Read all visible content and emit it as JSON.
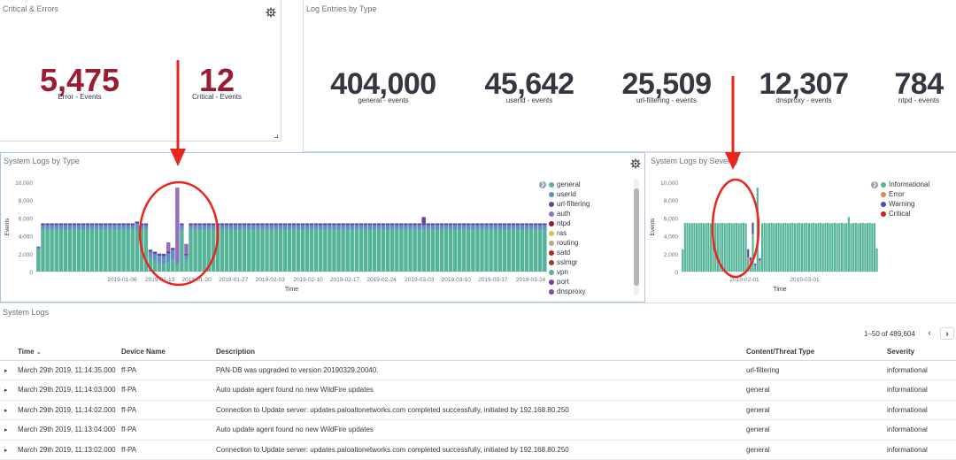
{
  "critical_errors": {
    "title": "Critical & Errors",
    "metrics": [
      {
        "value": "5,475",
        "label": "Error - Events"
      },
      {
        "value": "12",
        "label": "Critical - Events"
      }
    ]
  },
  "log_entries": {
    "title": "Log Entries by Type",
    "metrics": [
      {
        "value": "404,000",
        "label": "general - events"
      },
      {
        "value": "45,642",
        "label": "userid - events"
      },
      {
        "value": "25,509",
        "label": "url-filtering - events"
      },
      {
        "value": "12,307",
        "label": "dnsproxy - events"
      },
      {
        "value": "784",
        "label": "ntpd - events"
      }
    ]
  },
  "system_logs_by_type": {
    "title": "System Logs by Type",
    "legend": [
      {
        "name": "general",
        "color": "#54b399"
      },
      {
        "name": "userid",
        "color": "#6092c0"
      },
      {
        "name": "url-filtering",
        "color": "#6b3fa0"
      },
      {
        "name": "auth",
        "color": "#9170b8"
      },
      {
        "name": "ntpd",
        "color": "#8b1e3f"
      },
      {
        "name": "ras",
        "color": "#d6bf57"
      },
      {
        "name": "routing",
        "color": "#b9a888"
      },
      {
        "name": "satd",
        "color": "#bd271e"
      },
      {
        "name": "sslmgr",
        "color": "#a03c2c"
      },
      {
        "name": "vpn",
        "color": "#54b399"
      },
      {
        "name": "port",
        "color": "#7b3fa0"
      },
      {
        "name": "dnsproxy",
        "color": "#8e44ad"
      }
    ]
  },
  "system_logs_by_severity": {
    "title": "System Logs by Severity",
    "legend": [
      {
        "name": "Informational",
        "color": "#54b399"
      },
      {
        "name": "Error",
        "color": "#da8b45"
      },
      {
        "name": "Warning",
        "color": "#3f51b5"
      },
      {
        "name": "Critical",
        "color": "#bd271e"
      }
    ]
  },
  "chart_data": [
    {
      "type": "bar",
      "stacked": true,
      "xlabel": "Time",
      "ylabel": "Events",
      "ylim": [
        0,
        10000
      ],
      "yticks": [
        "10,000",
        "8,000",
        "6,000",
        "4,000",
        "2,000",
        "0"
      ],
      "xticks": [
        "2019-01-06",
        "2019-01-13",
        "2019-01-20",
        "2019-01-27",
        "2019-02-03",
        "2019-02-10",
        "2019-02-17",
        "2019-02-24",
        "2019-03-03",
        "2019-03-10",
        "2019-03-17",
        "2019-03-24"
      ],
      "grid": false,
      "legend_position": "right",
      "series": [
        {
          "name": "general",
          "color": "#54b399",
          "base": 4700,
          "dip": [
            1500,
            1200,
            900,
            800,
            1000,
            1300,
            1800
          ]
        },
        {
          "name": "userid",
          "color": "#6092c0",
          "base": 500
        },
        {
          "name": "url-filtering",
          "color": "#6b3fa0",
          "base": 200
        },
        {
          "name": "auth",
          "color": "#9170b8",
          "spike": [
            9400,
            2400
          ]
        }
      ]
    },
    {
      "type": "bar",
      "stacked": true,
      "xlabel": "Time",
      "ylabel": "Events",
      "ylim": [
        0,
        10000
      ],
      "yticks": [
        "10,000",
        "8,000",
        "6,000",
        "4,000",
        "2,000",
        "0"
      ],
      "xticks": [
        "2019-02-01",
        "2019-03-01"
      ],
      "legend_position": "right",
      "series": [
        {
          "name": "Informational",
          "color": "#54b399",
          "base": 5400,
          "spike": 9400
        },
        {
          "name": "Error",
          "color": "#da8b45"
        },
        {
          "name": "Warning",
          "color": "#3f51b5"
        },
        {
          "name": "Critical",
          "color": "#bd271e"
        }
      ]
    }
  ],
  "system_logs_table": {
    "title": "System Logs",
    "pagination": "1–50 of 489,604",
    "prev_label": "‹",
    "next_label": "›",
    "columns": [
      "Time",
      "Device Name",
      "Description",
      "Content/Threat Type",
      "Severity"
    ],
    "sort_indicator": "⌄",
    "rows": [
      [
        "March 29th 2019, 11:14:35.000",
        "ff-PA",
        "PAN-DB was upgraded to version 20190329.20040.",
        "url-filtering",
        "informational"
      ],
      [
        "March 29th 2019, 11:14:03.000",
        "ff-PA",
        "Auto update agent found no new WildFire updates",
        "general",
        "informational"
      ],
      [
        "March 29th 2019, 11:14:02.000",
        "ff-PA",
        "Connection to Update server: updates.paloaltonetworks.com completed successfully, initiated by 192.168.80.250",
        "general",
        "informational"
      ],
      [
        "March 29th 2019, 11:13:04.000",
        "ff-PA",
        "Auto update agent found no new WildFire updates",
        "general",
        "informational"
      ],
      [
        "March 29th 2019, 11:13:02.000",
        "ff-PA",
        "Connection to Update server: updates.paloaltonetworks.com completed successfully, initiated by 192.168.80.250",
        "general",
        "informational"
      ]
    ]
  }
}
